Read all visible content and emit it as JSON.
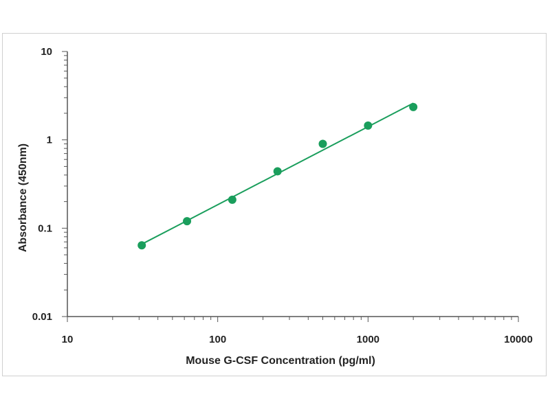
{
  "chart_data": {
    "type": "scatter",
    "xlabel": "Mouse G-CSF Concentration (pg/ml)",
    "ylabel": "Absorbance (450nm)",
    "x_scale": "log",
    "y_scale": "log",
    "xlim": [
      10,
      10000
    ],
    "ylim": [
      0.01,
      10
    ],
    "x_tick_labels": [
      "10",
      "100",
      "1000",
      "10000"
    ],
    "y_tick_labels": [
      "10",
      "1",
      "0.1",
      "0.01"
    ],
    "grid": false,
    "legend": "none",
    "series": [
      {
        "x": [
          31.25,
          62.5,
          125,
          250,
          500,
          1000,
          2000
        ],
        "y": [
          0.064,
          0.12,
          0.21,
          0.44,
          0.9,
          1.45,
          2.35
        ]
      }
    ],
    "fit_line": {
      "x": [
        31.25,
        2000
      ],
      "y": [
        0.066,
        2.6
      ]
    },
    "colors": {
      "series": "#1a9e5c",
      "axis": "#555555",
      "text": "#222222"
    }
  }
}
